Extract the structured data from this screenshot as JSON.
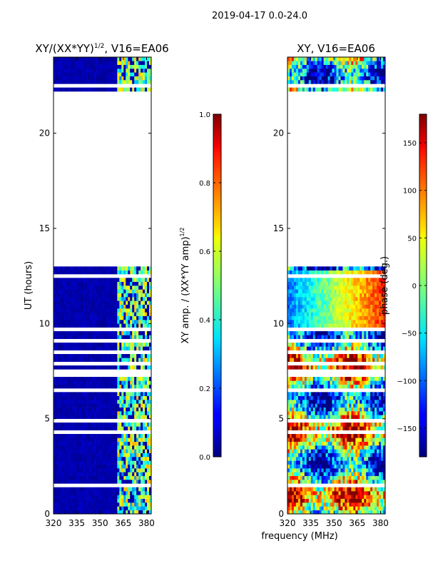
{
  "figure": {
    "suptitle": "2019-04-17 0.0-24.0",
    "xlabel": "frequency (MHz)"
  },
  "chart_data": [
    {
      "type": "heatmap",
      "title_main": "XY/(XX*YY)",
      "title_sup": "1/2",
      "title_tail": ", V16=EA06",
      "xlabel": "frequency (MHz)",
      "ylabel": "UT (hours)",
      "xlim": [
        320,
        383
      ],
      "ylim": [
        0,
        24
      ],
      "xticks": [
        {
          "value": 320,
          "label": "320"
        },
        {
          "value": 335,
          "label": "335"
        },
        {
          "value": 350,
          "label": "350"
        },
        {
          "value": 365,
          "label": "365"
        },
        {
          "value": 380,
          "label": "380"
        }
      ],
      "yticks": [
        {
          "value": 0,
          "label": "0"
        },
        {
          "value": 5,
          "label": "5"
        },
        {
          "value": 10,
          "label": "10"
        },
        {
          "value": 15,
          "label": "15"
        },
        {
          "value": 20,
          "label": "20"
        }
      ],
      "data_gaps_ut": [
        [
          13.0,
          22.3
        ]
      ],
      "colorbar": {
        "label_main": "XY amp. / (XX*YY amp)",
        "label_sup": "1/2",
        "range": [
          0.0,
          1.0
        ],
        "colormap": "jet",
        "ticks": [
          {
            "value": 0.0,
            "label": "0.0"
          },
          {
            "value": 0.2,
            "label": "0.2"
          },
          {
            "value": 0.4,
            "label": "0.4"
          },
          {
            "value": 0.6,
            "label": "0.6"
          },
          {
            "value": 0.8,
            "label": "0.8"
          },
          {
            "value": 1.0,
            "label": "1.0"
          }
        ]
      }
    },
    {
      "type": "heatmap",
      "title": "XY, V16=EA06",
      "xlabel": "frequency (MHz)",
      "xlim": [
        320,
        383
      ],
      "ylim": [
        0,
        24
      ],
      "xticks": [
        {
          "value": 320,
          "label": "320"
        },
        {
          "value": 335,
          "label": "335"
        },
        {
          "value": 350,
          "label": "350"
        },
        {
          "value": 365,
          "label": "365"
        },
        {
          "value": 380,
          "label": "380"
        }
      ],
      "yticks": [
        {
          "value": 0,
          "label": "0"
        },
        {
          "value": 5,
          "label": "5"
        },
        {
          "value": 10,
          "label": "10"
        },
        {
          "value": 15,
          "label": "15"
        },
        {
          "value": 20,
          "label": "20"
        }
      ],
      "data_gaps_ut": [
        [
          13.0,
          22.3
        ]
      ],
      "colorbar": {
        "label": "phase (deg.)",
        "range": [
          -180,
          180
        ],
        "colormap": "jet",
        "ticks": [
          {
            "value": 150,
            "label": "150"
          },
          {
            "value": 100,
            "label": "100"
          },
          {
            "value": 50,
            "label": "50"
          },
          {
            "value": 0,
            "label": "0"
          },
          {
            "value": -50,
            "label": "−50"
          },
          {
            "value": -100,
            "label": "−100"
          },
          {
            "value": -150,
            "label": "−150"
          }
        ]
      }
    }
  ]
}
